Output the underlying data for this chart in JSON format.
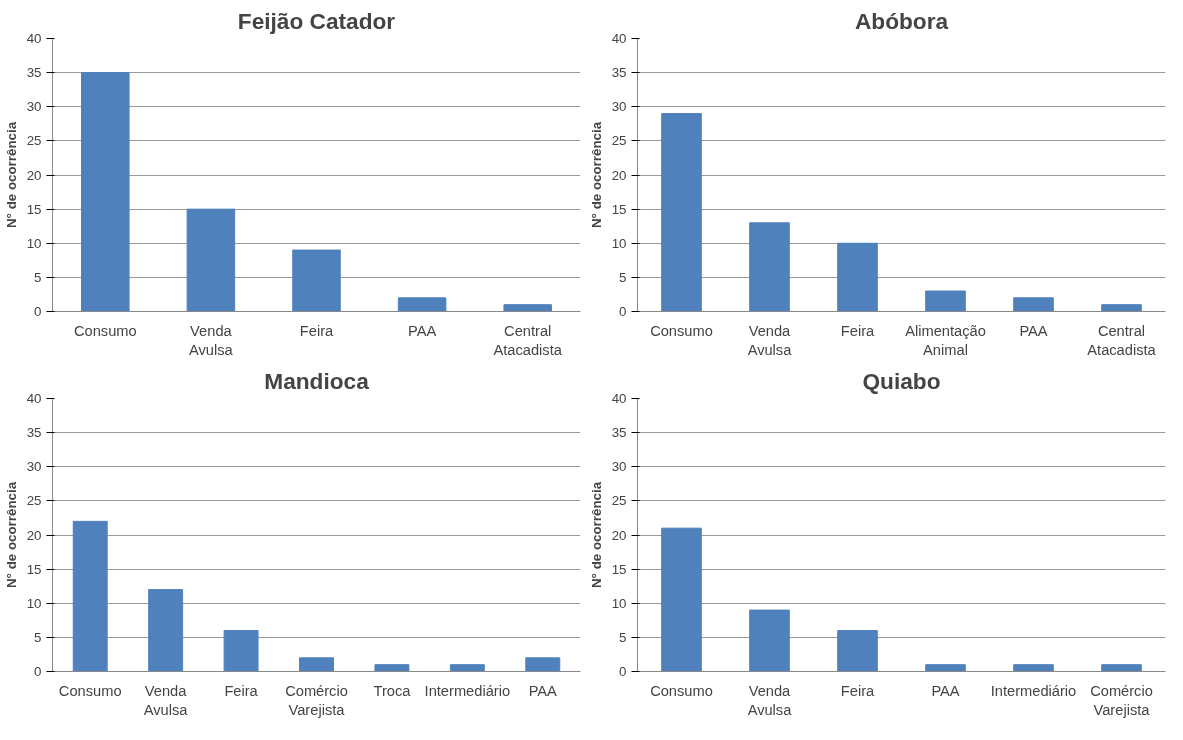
{
  "chart_data": [
    {
      "type": "bar",
      "title": "Feijão Catador",
      "ylabel": "N° de ocorrência",
      "categories": [
        "Consumo",
        "Venda Avulsa",
        "Feira",
        "PAA",
        "Central Atacadista"
      ],
      "values": [
        35,
        15,
        9,
        2,
        1
      ],
      "color": "#4f81bd",
      "ylim": [
        0,
        40
      ],
      "yticks": [
        0,
        5,
        10,
        15,
        20,
        25,
        30,
        35,
        40
      ],
      "grid": "y"
    },
    {
      "type": "bar",
      "title": "Abóbora",
      "ylabel": "N° de ocorrência",
      "categories": [
        "Consumo",
        "Venda Avulsa",
        "Feira",
        "Alimentação Animal",
        "PAA",
        "Central Atacadista"
      ],
      "values": [
        29,
        13,
        10,
        3,
        2,
        1
      ],
      "color": "#4f81bd",
      "ylim": [
        0,
        40
      ],
      "yticks": [
        0,
        5,
        10,
        15,
        20,
        25,
        30,
        35,
        40
      ],
      "grid": "y"
    },
    {
      "type": "bar",
      "title": "Mandioca",
      "ylabel": "N° de ocorrência",
      "categories": [
        "Consumo",
        "Venda Avulsa",
        "Feira",
        "Comércio Varejista",
        "Troca",
        "Intermediário",
        "PAA"
      ],
      "values": [
        22,
        12,
        6,
        2,
        1,
        1,
        2
      ],
      "color": "#4f81bd",
      "ylim": [
        0,
        40
      ],
      "yticks": [
        0,
        5,
        10,
        15,
        20,
        25,
        30,
        35,
        40
      ],
      "grid": "y"
    },
    {
      "type": "bar",
      "title": "Quiabo",
      "ylabel": "N° de ocorrência",
      "categories": [
        "Consumo",
        "Venda Avulsa",
        "Feira",
        "PAA",
        "Intermediário",
        "Comércio Varejista"
      ],
      "values": [
        21,
        9,
        6,
        1,
        1,
        1
      ],
      "color": "#4f81bd",
      "ylim": [
        0,
        40
      ],
      "yticks": [
        0,
        5,
        10,
        15,
        20,
        25,
        30,
        35,
        40
      ],
      "grid": "y"
    }
  ]
}
